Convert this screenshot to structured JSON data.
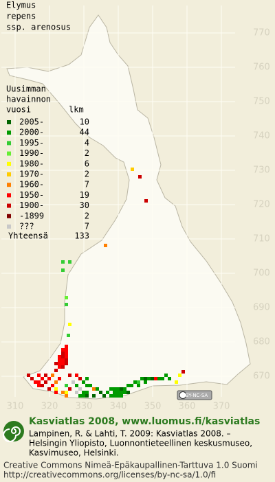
{
  "title_lines": [
    "Elymus",
    "repens",
    "ssp. arenosus"
  ],
  "map": {
    "xlim": [
      306,
      374
    ],
    "ylim": [
      664,
      778
    ],
    "xticks": [
      310,
      320,
      330,
      340,
      350,
      360,
      370
    ],
    "yticks": [
      670,
      680,
      690,
      700,
      710,
      720,
      730,
      740,
      750,
      760,
      770
    ]
  },
  "legend": {
    "header_lines": [
      "Uusimman",
      "havainnon",
      "vuosi"
    ],
    "count_header": "lkm",
    "rows": [
      {
        "label": "2005-",
        "count": 10,
        "color": "#006400"
      },
      {
        "label": "2000-",
        "count": 44,
        "color": "#009a00"
      },
      {
        "label": "1995-",
        "count": 4,
        "color": "#33cc33"
      },
      {
        "label": "1990-",
        "count": 2,
        "color": "#66ee33"
      },
      {
        "label": "1980-",
        "count": 6,
        "color": "#ffff00"
      },
      {
        "label": "1970-",
        "count": 2,
        "color": "#ffcc00"
      },
      {
        "label": "1960-",
        "count": 7,
        "color": "#ff7f00"
      },
      {
        "label": "1950-",
        "count": 19,
        "color": "#ff0000"
      },
      {
        "label": "1900-",
        "count": 30,
        "color": "#cc0000"
      },
      {
        "label": "-1899",
        "count": 2,
        "color": "#800000"
      },
      {
        "label": "???",
        "count": 7,
        "color": "#c8c8c8"
      }
    ],
    "total_label": "Yhteensä",
    "total": 133
  },
  "license_badge": "BY-NC-SA",
  "footer": {
    "heading": "Kasviatlas 2008, www.luomus.fi/kasviatlas",
    "citation_lines": [
      "Lampinen, R. & Lahti, T. 2009: Kasviatlas 2008. –",
      "Helsingin Yliopisto, Luonnontieteellinen keskusmuseo,",
      "Kasvimuseo, Helsinki."
    ],
    "license_lines": [
      "Creative Commons Nimeä-Epäkaupallinen-Tarttuva 1.0 Suomi",
      "http://creativecommons.org/licenses/by-nc-sa/1.0/fi"
    ]
  }
}
